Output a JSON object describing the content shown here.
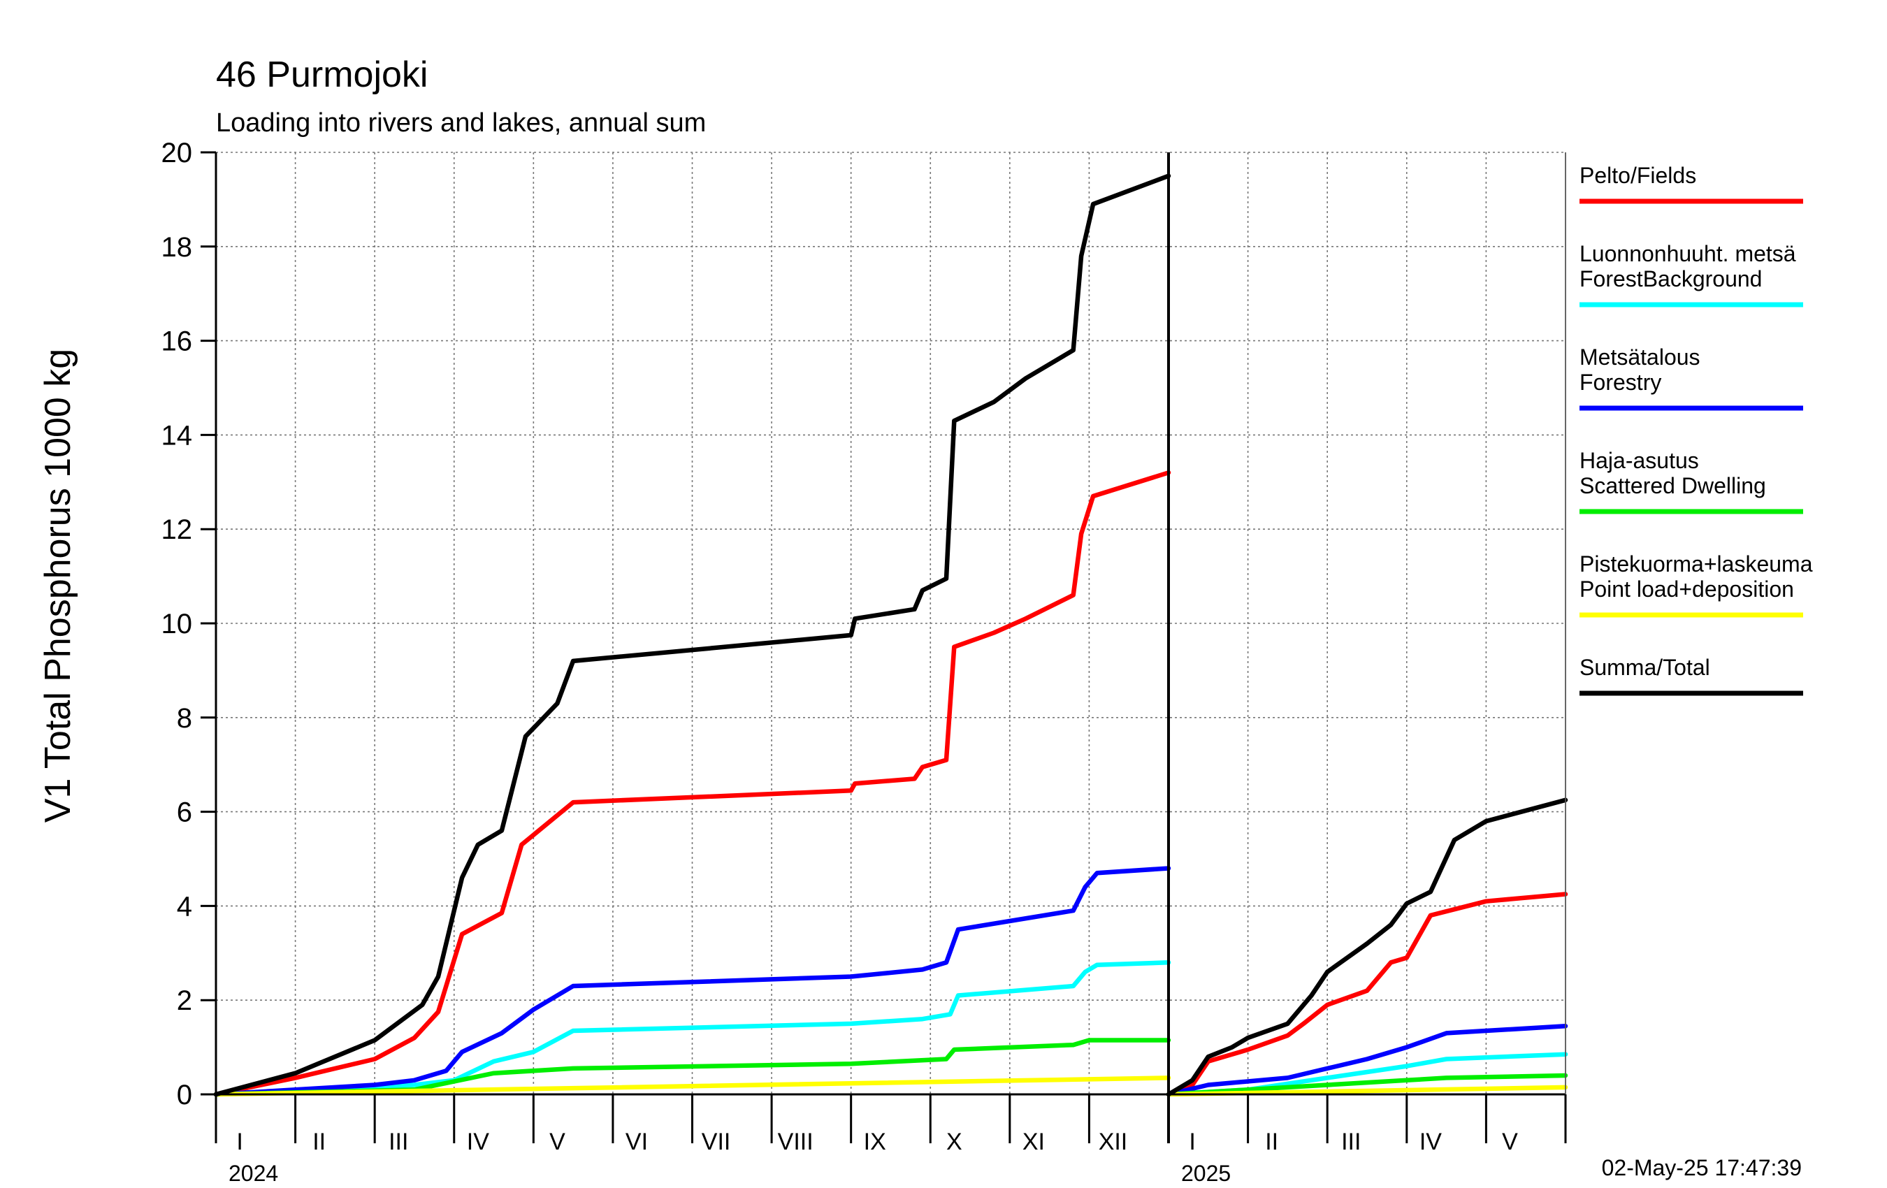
{
  "chart_data": {
    "type": "line",
    "title": "46 Purmojoki",
    "subtitle": "Loading into rivers and lakes, annual sum",
    "ylabel": "V1 Total Phosphorus 1000 kg",
    "ylim": [
      0,
      20
    ],
    "y_ticks": [
      "0",
      "2",
      "4",
      "6",
      "8",
      "10",
      "12",
      "14",
      "16",
      "18",
      "20"
    ],
    "timestamp": "02-May-25 17:47:39",
    "grid": true,
    "legend_position": "right",
    "panels": [
      {
        "year_label": "2024",
        "month_labels": [
          "I",
          "II",
          "III",
          "IV",
          "V",
          "VI",
          "VII",
          "VIII",
          "IX",
          "X",
          "XI",
          "XII"
        ],
        "months_total": 12,
        "series": [
          {
            "key": "fields",
            "color": "#ff0000",
            "points": [
              [
                0,
                0
              ],
              [
                1,
                0.35
              ],
              [
                2,
                0.75
              ],
              [
                2.5,
                1.2
              ],
              [
                2.8,
                1.75
              ],
              [
                3.1,
                3.4
              ],
              [
                3.6,
                3.85
              ],
              [
                3.85,
                5.3
              ],
              [
                4.5,
                6.2
              ],
              [
                8,
                6.45
              ],
              [
                8.05,
                6.6
              ],
              [
                8.8,
                6.7
              ],
              [
                8.9,
                6.95
              ],
              [
                9.2,
                7.1
              ],
              [
                9.3,
                9.5
              ],
              [
                9.8,
                9.8
              ],
              [
                10.2,
                10.1
              ],
              [
                10.8,
                10.6
              ],
              [
                10.9,
                11.9
              ],
              [
                11.05,
                12.7
              ],
              [
                12,
                13.2
              ]
            ]
          },
          {
            "key": "forest_background",
            "color": "#00ffff",
            "points": [
              [
                0,
                0
              ],
              [
                2.5,
                0.2
              ],
              [
                3,
                0.3
              ],
              [
                3.5,
                0.7
              ],
              [
                4,
                0.9
              ],
              [
                4.5,
                1.35
              ],
              [
                8,
                1.5
              ],
              [
                8.9,
                1.6
              ],
              [
                9.25,
                1.7
              ],
              [
                9.35,
                2.1
              ],
              [
                10.8,
                2.3
              ],
              [
                10.95,
                2.6
              ],
              [
                11.1,
                2.75
              ],
              [
                12,
                2.8
              ]
            ]
          },
          {
            "key": "forestry",
            "color": "#0000ff",
            "points": [
              [
                0,
                0
              ],
              [
                1,
                0.1
              ],
              [
                2,
                0.2
              ],
              [
                2.5,
                0.3
              ],
              [
                2.9,
                0.5
              ],
              [
                3.1,
                0.9
              ],
              [
                3.6,
                1.3
              ],
              [
                4,
                1.8
              ],
              [
                4.5,
                2.3
              ],
              [
                8,
                2.5
              ],
              [
                8.9,
                2.65
              ],
              [
                9.2,
                2.8
              ],
              [
                9.35,
                3.5
              ],
              [
                10.8,
                3.9
              ],
              [
                10.95,
                4.4
              ],
              [
                11.1,
                4.7
              ],
              [
                12,
                4.8
              ]
            ]
          },
          {
            "key": "scattered_dwelling",
            "color": "#00ee00",
            "points": [
              [
                0,
                0
              ],
              [
                2.5,
                0.1
              ],
              [
                3.5,
                0.45
              ],
              [
                4.5,
                0.55
              ],
              [
                8,
                0.65
              ],
              [
                9.2,
                0.75
              ],
              [
                9.3,
                0.95
              ],
              [
                10.8,
                1.05
              ],
              [
                11,
                1.15
              ],
              [
                12,
                1.15
              ]
            ]
          },
          {
            "key": "point_load_deposition",
            "color": "#ffff00",
            "points": [
              [
                0,
                0
              ],
              [
                12,
                0.35
              ]
            ]
          },
          {
            "key": "total",
            "color": "#000000",
            "points": [
              [
                0,
                0
              ],
              [
                1,
                0.45
              ],
              [
                2,
                1.15
              ],
              [
                2.6,
                1.9
              ],
              [
                2.8,
                2.5
              ],
              [
                3.1,
                4.6
              ],
              [
                3.3,
                5.3
              ],
              [
                3.6,
                5.6
              ],
              [
                3.9,
                7.6
              ],
              [
                4.3,
                8.3
              ],
              [
                4.5,
                9.2
              ],
              [
                8,
                9.75
              ],
              [
                8.05,
                10.1
              ],
              [
                8.8,
                10.3
              ],
              [
                8.9,
                10.7
              ],
              [
                9.2,
                10.95
              ],
              [
                9.3,
                14.3
              ],
              [
                9.8,
                14.7
              ],
              [
                10.2,
                15.2
              ],
              [
                10.8,
                15.8
              ],
              [
                10.9,
                17.8
              ],
              [
                11.05,
                18.9
              ],
              [
                12,
                19.5
              ]
            ]
          }
        ]
      },
      {
        "year_label": "2025",
        "month_labels": [
          "I",
          "II",
          "III",
          "IV",
          "V"
        ],
        "months_total": 5,
        "series": [
          {
            "key": "fields",
            "color": "#ff0000",
            "points": [
              [
                0,
                0
              ],
              [
                0.3,
                0.2
              ],
              [
                0.5,
                0.7
              ],
              [
                1,
                0.95
              ],
              [
                1.5,
                1.25
              ],
              [
                1.7,
                1.5
              ],
              [
                2,
                1.9
              ],
              [
                2.5,
                2.2
              ],
              [
                2.8,
                2.8
              ],
              [
                3,
                2.9
              ],
              [
                3.3,
                3.8
              ],
              [
                4,
                4.1
              ],
              [
                5,
                4.25
              ]
            ]
          },
          {
            "key": "forest_background",
            "color": "#00ffff",
            "points": [
              [
                0,
                0
              ],
              [
                1,
                0.1
              ],
              [
                2,
                0.35
              ],
              [
                3,
                0.6
              ],
              [
                3.5,
                0.75
              ],
              [
                5,
                0.85
              ]
            ]
          },
          {
            "key": "forestry",
            "color": "#0000ff",
            "points": [
              [
                0,
                0
              ],
              [
                0.5,
                0.2
              ],
              [
                1.5,
                0.35
              ],
              [
                2,
                0.55
              ],
              [
                2.5,
                0.75
              ],
              [
                3,
                1.0
              ],
              [
                3.5,
                1.3
              ],
              [
                5,
                1.45
              ]
            ]
          },
          {
            "key": "scattered_dwelling",
            "color": "#00ee00",
            "points": [
              [
                0,
                0
              ],
              [
                1,
                0.1
              ],
              [
                2,
                0.2
              ],
              [
                3,
                0.3
              ],
              [
                3.5,
                0.35
              ],
              [
                5,
                0.4
              ]
            ]
          },
          {
            "key": "point_load_deposition",
            "color": "#ffff00",
            "points": [
              [
                0,
                0
              ],
              [
                5,
                0.15
              ]
            ]
          },
          {
            "key": "total",
            "color": "#000000",
            "points": [
              [
                0,
                0
              ],
              [
                0.3,
                0.3
              ],
              [
                0.5,
                0.8
              ],
              [
                0.8,
                1.0
              ],
              [
                1,
                1.2
              ],
              [
                1.5,
                1.5
              ],
              [
                1.8,
                2.1
              ],
              [
                2,
                2.6
              ],
              [
                2.5,
                3.2
              ],
              [
                2.8,
                3.6
              ],
              [
                3,
                4.05
              ],
              [
                3.3,
                4.3
              ],
              [
                3.6,
                5.4
              ],
              [
                4,
                5.8
              ],
              [
                5,
                6.25
              ]
            ]
          }
        ]
      }
    ],
    "legend": [
      {
        "key": "fields",
        "lines": [
          "Pelto/Fields"
        ],
        "color": "#ff0000"
      },
      {
        "key": "forest_background",
        "lines": [
          "Luonnonhuuht. metsä",
          "ForestBackground"
        ],
        "color": "#00ffff"
      },
      {
        "key": "forestry",
        "lines": [
          "Metsätalous",
          "Forestry"
        ],
        "color": "#0000ff"
      },
      {
        "key": "scattered_dwelling",
        "lines": [
          "Haja-asutus",
          "Scattered Dwelling"
        ],
        "color": "#00ee00"
      },
      {
        "key": "point_load_deposition",
        "lines": [
          "Pistekuorma+laskeuma",
          "Point load+deposition"
        ],
        "color": "#ffff00"
      },
      {
        "key": "total",
        "lines": [
          "Summa/Total"
        ],
        "color": "#000000"
      }
    ]
  }
}
